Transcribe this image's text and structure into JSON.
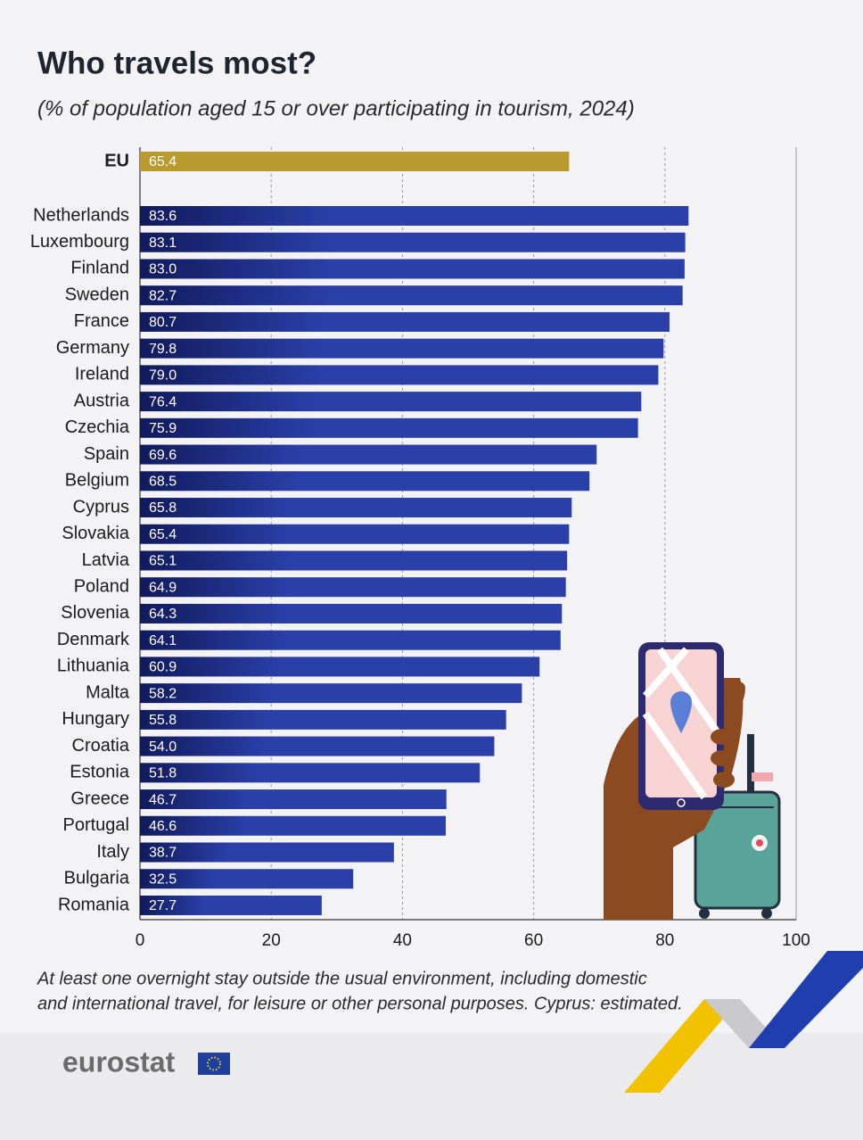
{
  "chart_data": {
    "type": "hbar",
    "title": "Who travels most?",
    "subtitle": "(% of population aged 15 or over participating in tourism, 2024)",
    "categories": [
      "EU",
      "Netherlands",
      "Luxembourg",
      "Finland",
      "Sweden",
      "France",
      "Germany",
      "Ireland",
      "Austria",
      "Czechia",
      "Spain",
      "Belgium",
      "Cyprus",
      "Slovakia",
      "Latvia",
      "Poland",
      "Slovenia",
      "Denmark",
      "Lithuania",
      "Malta",
      "Hungary",
      "Croatia",
      "Estonia",
      "Greece",
      "Portugal",
      "Italy",
      "Bulgaria",
      "Romania"
    ],
    "values": [
      65.4,
      83.6,
      83.1,
      83.0,
      82.7,
      80.7,
      79.8,
      79.0,
      76.4,
      75.9,
      69.6,
      68.5,
      65.8,
      65.4,
      65.1,
      64.9,
      64.3,
      64.1,
      60.9,
      58.2,
      55.8,
      54.0,
      51.8,
      46.7,
      46.6,
      38.7,
      32.5,
      27.7
    ],
    "value_labels": [
      "65.4",
      "83.6",
      "83.1",
      "83.0",
      "82.7",
      "80.7",
      "79.8",
      "79.0",
      "76.4",
      "75.9",
      "69.6",
      "68.5",
      "65.8",
      "65.4",
      "65.1",
      "64.9",
      "64.3",
      "64.1",
      "60.9",
      "58.2",
      "55.8",
      "54.0",
      "51.8",
      "46.7",
      "46.6",
      "38.7",
      "32.5",
      "27.7"
    ],
    "colors": [
      "#b89a2e",
      "#2a3fa8",
      "#2a3fa8",
      "#2a3fa8",
      "#2a3fa8",
      "#2a3fa8",
      "#2a3fa8",
      "#2a3fa8",
      "#2a3fa8",
      "#2a3fa8",
      "#2a3fa8",
      "#2a3fa8",
      "#2a3fa8",
      "#2a3fa8",
      "#2a3fa8",
      "#2a3fa8",
      "#2a3fa8",
      "#2a3fa8",
      "#2a3fa8",
      "#2a3fa8",
      "#2a3fa8",
      "#2a3fa8",
      "#2a3fa8",
      "#2a3fa8",
      "#2a3fa8",
      "#2a3fa8",
      "#2a3fa8",
      "#2a3fa8"
    ],
    "xlim": [
      0,
      100
    ],
    "xticks": [
      0,
      20,
      40,
      60,
      80,
      100
    ],
    "grid": true,
    "footnote": [
      "At least one overnight stay outside the usual environment, including domestic",
      "and international travel, for leisure or other personal purposes. Cyprus: estimated."
    ],
    "source": "eurostat"
  }
}
